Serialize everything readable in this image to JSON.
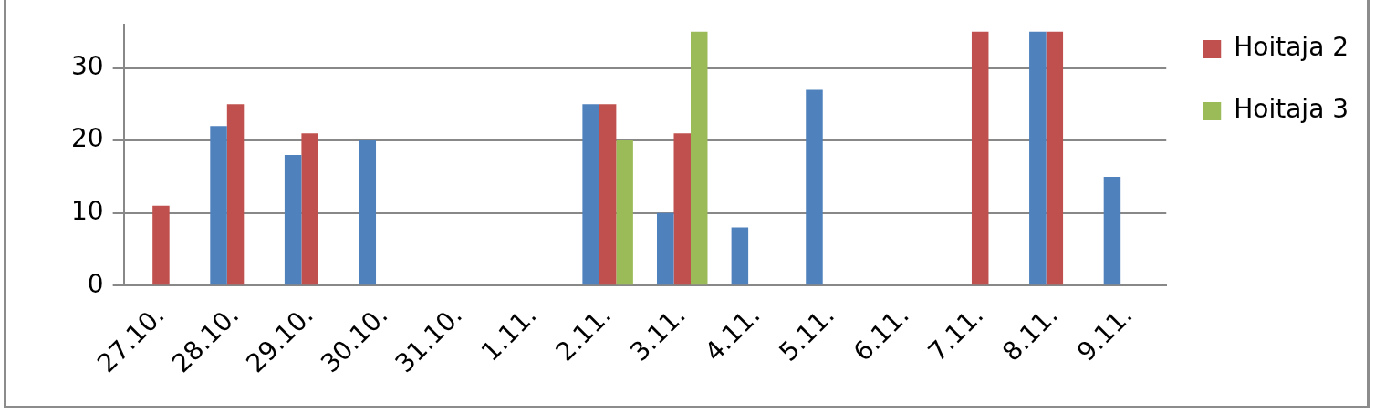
{
  "chart_data": {
    "type": "bar",
    "categories": [
      "27.10.",
      "28.10.",
      "29.10.",
      "30.10.",
      "31.10.",
      "1.11.",
      "2.11.",
      "3.11.",
      "4.11.",
      "5.11.",
      "6.11.",
      "7.11.",
      "8.11.",
      "9.11."
    ],
    "series": [
      {
        "color": "#4f81bd",
        "values": [
          null,
          22,
          18,
          20,
          null,
          null,
          25,
          10,
          8,
          27,
          null,
          null,
          35,
          15
        ]
      },
      {
        "name": "Hoitaja 2",
        "color": "#c0504d",
        "values": [
          11,
          25,
          21,
          null,
          null,
          null,
          25,
          21,
          null,
          null,
          null,
          35,
          35,
          null
        ]
      },
      {
        "name": "Hoitaja 3",
        "color": "#9bbb59",
        "values": [
          null,
          null,
          null,
          null,
          null,
          null,
          20,
          35,
          null,
          null,
          null,
          null,
          null,
          null
        ]
      }
    ],
    "ylim": [
      0,
      36
    ],
    "yticks": [
      0,
      10,
      20,
      30
    ],
    "grid": "y",
    "legend": "right"
  }
}
